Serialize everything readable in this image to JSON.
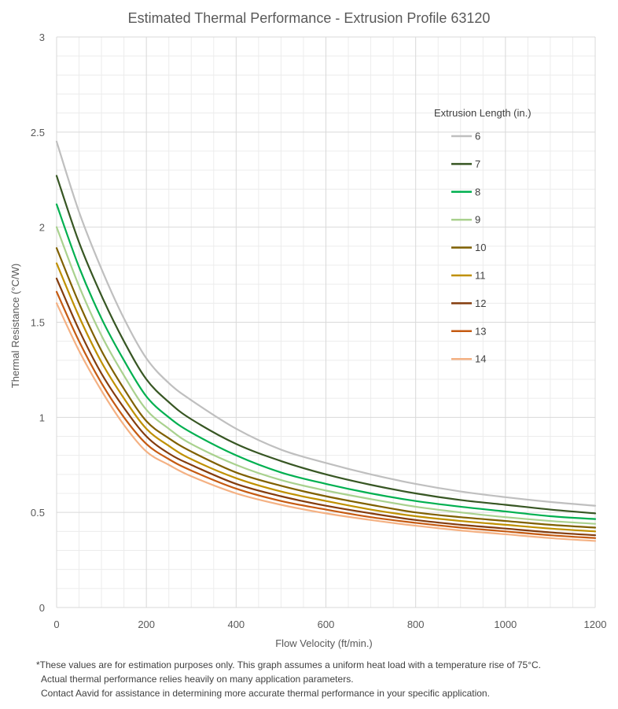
{
  "chart_data": {
    "type": "line",
    "title": "Estimated Thermal Performance - Extrusion Profile 63120",
    "xlabel": "Flow Velocity (ft/min.)",
    "ylabel": "Thermal Resistance (°C/W)",
    "xlim": [
      0,
      1200
    ],
    "ylim": [
      0,
      3
    ],
    "xticks": [
      0,
      200,
      400,
      600,
      800,
      1000,
      1200
    ],
    "yticks": [
      0,
      0.5,
      1,
      1.5,
      2,
      2.5,
      3
    ],
    "xtick_labels": [
      "0",
      "200",
      "400",
      "600",
      "800",
      "1000",
      "1200"
    ],
    "ytick_labels": [
      "0",
      "0.5",
      "1",
      "1.5",
      "2",
      "2.5",
      "3"
    ],
    "grid": true,
    "legend_title": "Extrusion Length (in.)",
    "legend_position": "right",
    "x": [
      0,
      50,
      100,
      150,
      200,
      250,
      300,
      400,
      500,
      600,
      700,
      800,
      900,
      1000,
      1100,
      1200
    ],
    "series": [
      {
        "name": "6",
        "color": "#BFBFBF",
        "values": [
          2.45,
          2.08,
          1.78,
          1.52,
          1.31,
          1.18,
          1.09,
          0.94,
          0.83,
          0.76,
          0.7,
          0.65,
          0.61,
          0.58,
          0.555,
          0.535
        ]
      },
      {
        "name": "7",
        "color": "#375623",
        "values": [
          2.27,
          1.92,
          1.64,
          1.4,
          1.2,
          1.08,
          0.99,
          0.86,
          0.77,
          0.7,
          0.645,
          0.6,
          0.565,
          0.54,
          0.515,
          0.495
        ]
      },
      {
        "name": "8",
        "color": "#00B050",
        "values": [
          2.12,
          1.79,
          1.52,
          1.3,
          1.11,
          1.0,
          0.92,
          0.8,
          0.71,
          0.65,
          0.6,
          0.56,
          0.53,
          0.505,
          0.48,
          0.465
        ]
      },
      {
        "name": "9",
        "color": "#A9D18E",
        "values": [
          2.0,
          1.69,
          1.43,
          1.22,
          1.04,
          0.94,
          0.86,
          0.75,
          0.67,
          0.615,
          0.57,
          0.53,
          0.5,
          0.475,
          0.455,
          0.44
        ]
      },
      {
        "name": "10",
        "color": "#7F6000",
        "values": [
          1.89,
          1.6,
          1.35,
          1.15,
          0.98,
          0.89,
          0.82,
          0.71,
          0.64,
          0.585,
          0.54,
          0.5,
          0.475,
          0.455,
          0.435,
          0.42
        ]
      },
      {
        "name": "11",
        "color": "#BF9000",
        "values": [
          1.81,
          1.53,
          1.29,
          1.1,
          0.94,
          0.85,
          0.78,
          0.68,
          0.61,
          0.56,
          0.515,
          0.48,
          0.455,
          0.435,
          0.415,
          0.4
        ]
      },
      {
        "name": "12",
        "color": "#843C0C",
        "values": [
          1.73,
          1.46,
          1.23,
          1.05,
          0.9,
          0.81,
          0.75,
          0.65,
          0.585,
          0.535,
          0.495,
          0.46,
          0.435,
          0.415,
          0.395,
          0.38
        ]
      },
      {
        "name": "13",
        "color": "#C55A11",
        "values": [
          1.66,
          1.4,
          1.18,
          1.0,
          0.86,
          0.78,
          0.72,
          0.625,
          0.56,
          0.515,
          0.475,
          0.445,
          0.42,
          0.4,
          0.38,
          0.365
        ]
      },
      {
        "name": "14",
        "color": "#F4B183",
        "values": [
          1.6,
          1.35,
          1.14,
          0.96,
          0.82,
          0.75,
          0.69,
          0.6,
          0.54,
          0.495,
          0.46,
          0.43,
          0.405,
          0.385,
          0.365,
          0.35
        ]
      }
    ]
  },
  "footnote": {
    "line1": "*These values are for estimation purposes only. This graph assumes a uniform heat load with a temperature rise of 75°C.",
    "line2": "Actual thermal performance relies heavily on many application parameters.",
    "line3": "Contact Aavid for assistance in determining more accurate thermal performance in your specific application."
  }
}
